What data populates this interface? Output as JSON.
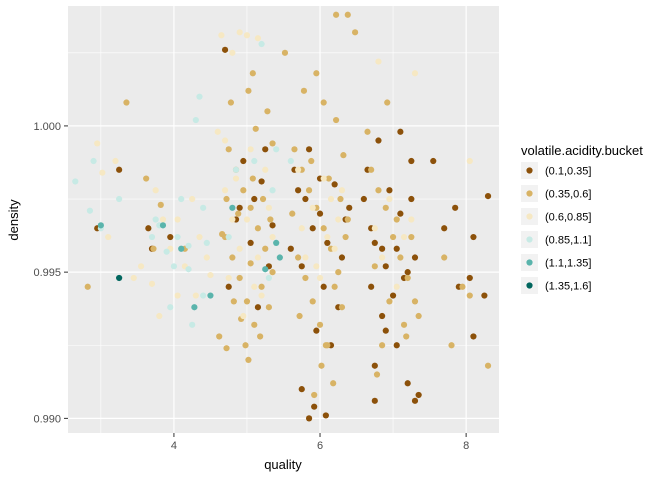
{
  "chart_data": {
    "type": "scatter",
    "xlabel": "quality",
    "ylabel": "density",
    "xlim": [
      2.55,
      8.45
    ],
    "ylim": [
      0.9895,
      1.0041
    ],
    "x_ticks": [
      4,
      6,
      8
    ],
    "x_tick_labels": [
      "4",
      "6",
      "8"
    ],
    "y_ticks": [
      0.99,
      0.995,
      1.0
    ],
    "y_tick_labels": [
      "0.990",
      "0.995",
      "1.000"
    ],
    "grid": true,
    "jitter": true,
    "legend": {
      "title": "volatile.acidity.bucket",
      "placement": "right",
      "entries": [
        {
          "label": "(0.1,0.35]",
          "color": "#8c510a"
        },
        {
          "label": "(0.35,0.6]",
          "color": "#d8b365"
        },
        {
          "label": "(0.6,0.85]",
          "color": "#f6e8c3"
        },
        {
          "label": "(0.85,1.1]",
          "color": "#c7eae5"
        },
        {
          "label": "(1.1,1.35]",
          "color": "#5ab4ac"
        },
        {
          "label": "(1.35,1.6]",
          "color": "#01665e"
        }
      ]
    },
    "series": [
      {
        "name": "(0.1,0.35]",
        "color": "#8c510a",
        "points": [
          [
            4.7,
            1.0026
          ],
          [
            4.95,
            0.9988
          ],
          [
            5.1,
            0.9975
          ],
          [
            5.2,
            0.9981
          ],
          [
            4.85,
            0.9968
          ],
          [
            5.05,
            0.996
          ],
          [
            5.3,
            0.9952
          ],
          [
            4.75,
            0.9945
          ],
          [
            5.25,
            0.9992
          ],
          [
            5.15,
            0.9938
          ],
          [
            4.9,
            0.9972
          ],
          [
            5.35,
            0.9966
          ],
          [
            5.65,
            0.9985
          ],
          [
            5.8,
            0.9975
          ],
          [
            6.0,
            0.997
          ],
          [
            6.2,
            0.998
          ],
          [
            5.9,
            0.9965
          ],
          [
            6.1,
            0.996
          ],
          [
            6.3,
            0.9955
          ],
          [
            5.75,
            0.9952
          ],
          [
            6.05,
            0.9945
          ],
          [
            6.25,
            0.9938
          ],
          [
            5.95,
            0.993
          ],
          [
            6.15,
            0.9925
          ],
          [
            5.7,
            0.9978
          ],
          [
            6.35,
            0.9968
          ],
          [
            5.85,
            0.9992
          ],
          [
            6.4,
            0.9972
          ],
          [
            6.0,
            0.9982
          ],
          [
            5.6,
            0.9958
          ],
          [
            6.65,
            0.9985
          ],
          [
            6.8,
            0.9995
          ],
          [
            6.95,
            0.9978
          ],
          [
            7.1,
            0.997
          ],
          [
            7.25,
            0.9975
          ],
          [
            6.75,
            0.996
          ],
          [
            6.9,
            0.9952
          ],
          [
            7.05,
            0.9958
          ],
          [
            7.2,
            0.995
          ],
          [
            6.7,
            0.9945
          ],
          [
            7.0,
            0.9942
          ],
          [
            7.15,
            0.9948
          ],
          [
            6.85,
            0.9935
          ],
          [
            7.3,
            0.9955
          ],
          [
            6.9,
            0.993
          ],
          [
            7.05,
            0.9925
          ],
          [
            6.75,
            0.9918
          ],
          [
            7.2,
            0.9912
          ],
          [
            7.3,
            0.9906
          ],
          [
            6.7,
            0.9965
          ],
          [
            7.1,
            0.9998
          ],
          [
            7.25,
            0.9988
          ],
          [
            6.6,
            0.9975
          ],
          [
            6.85,
            0.9958
          ],
          [
            5.75,
            0.991
          ],
          [
            5.92,
            0.9904
          ],
          [
            6.08,
            0.9901
          ],
          [
            5.85,
            0.99
          ],
          [
            6.75,
            0.9906
          ],
          [
            7.35,
            0.9908
          ],
          [
            7.55,
            0.9988
          ],
          [
            7.7,
            0.9965
          ],
          [
            7.85,
            0.9972
          ],
          [
            7.9,
            0.9945
          ],
          [
            8.05,
            0.9948
          ],
          [
            8.1,
            0.9962
          ],
          [
            8.3,
            0.9976
          ],
          [
            8.1,
            0.9928
          ],
          [
            8.25,
            0.9942
          ],
          [
            3.7,
            0.9958
          ],
          [
            3.65,
            0.9965
          ],
          [
            3.95,
            0.9962
          ],
          [
            3.25,
            0.9985
          ],
          [
            2.95,
            0.9965
          ]
        ]
      },
      {
        "name": "(0.35,0.6]",
        "color": "#d8b365",
        "points": [
          [
            4.75,
            0.9992
          ],
          [
            4.85,
            0.9985
          ],
          [
            4.95,
            0.9978
          ],
          [
            5.05,
            0.9972
          ],
          [
            5.15,
            0.9965
          ],
          [
            5.25,
            0.9958
          ],
          [
            5.35,
            0.995
          ],
          [
            4.7,
            0.9962
          ],
          [
            4.8,
            0.9955
          ],
          [
            4.9,
            0.9948
          ],
          [
            5.0,
            0.994
          ],
          [
            5.1,
            0.9932
          ],
          [
            5.2,
            0.9945
          ],
          [
            5.3,
            0.9938
          ],
          [
            4.72,
            0.9975
          ],
          [
            4.88,
            0.997
          ],
          [
            5.08,
            0.9982
          ],
          [
            5.22,
            0.9975
          ],
          [
            5.32,
            0.9968
          ],
          [
            4.82,
            0.994
          ],
          [
            5.18,
            0.9928
          ],
          [
            4.98,
            0.9925
          ],
          [
            5.12,
            0.9999
          ],
          [
            4.78,
            1.0008
          ],
          [
            5.28,
            1.0005
          ],
          [
            5.02,
            1.0012
          ],
          [
            4.92,
            0.9934
          ],
          [
            5.35,
            0.9994
          ],
          [
            4.66,
            0.9963
          ],
          [
            5.05,
            0.9953
          ],
          [
            5.65,
            0.9992
          ],
          [
            5.75,
            0.9985
          ],
          [
            5.85,
            0.9978
          ],
          [
            5.95,
            0.9972
          ],
          [
            6.05,
            0.9965
          ],
          [
            6.15,
            0.9958
          ],
          [
            6.25,
            0.995
          ],
          [
            6.35,
            0.9962
          ],
          [
            5.7,
            0.9955
          ],
          [
            5.8,
            0.9948
          ],
          [
            5.9,
            0.994
          ],
          [
            6.0,
            0.9932
          ],
          [
            6.1,
            0.9925
          ],
          [
            6.2,
            0.9945
          ],
          [
            6.3,
            0.9938
          ],
          [
            5.62,
            0.997
          ],
          [
            5.88,
            0.9988
          ],
          [
            6.12,
            0.9982
          ],
          [
            6.28,
            0.9975
          ],
          [
            6.38,
            0.9968
          ],
          [
            5.72,
            0.9935
          ],
          [
            6.02,
            0.9918
          ],
          [
            6.18,
            0.9912
          ],
          [
            5.92,
            0.9908
          ],
          [
            6.08,
            0.9925
          ],
          [
            5.95,
            1.0018
          ],
          [
            6.05,
            1.0008
          ],
          [
            6.22,
            1.0002
          ],
          [
            5.78,
            1.0012
          ],
          [
            6.32,
            0.999
          ],
          [
            6.7,
            0.9985
          ],
          [
            6.8,
            0.9978
          ],
          [
            6.9,
            0.9972
          ],
          [
            7.0,
            0.9962
          ],
          [
            7.1,
            0.9955
          ],
          [
            7.2,
            0.9948
          ],
          [
            7.3,
            0.994
          ],
          [
            6.75,
            0.9952
          ],
          [
            6.95,
            0.994
          ],
          [
            7.15,
            0.9932
          ],
          [
            6.85,
            0.9925
          ],
          [
            7.05,
            0.9968
          ],
          [
            7.25,
            0.9962
          ],
          [
            6.65,
            0.9998
          ],
          [
            7.35,
            0.9935
          ],
          [
            6.92,
            1.0008
          ],
          [
            7.18,
            0.9928
          ],
          [
            6.78,
            0.9915
          ],
          [
            7.8,
            0.9925
          ],
          [
            7.95,
            0.9945
          ],
          [
            8.05,
            0.9942
          ],
          [
            7.7,
            0.9955
          ],
          [
            8.3,
            0.9918
          ],
          [
            6.48,
            1.0032
          ],
          [
            6.22,
            1.0038
          ],
          [
            6.38,
            1.0038
          ],
          [
            5.52,
            1.0025
          ],
          [
            5.08,
            1.0018
          ],
          [
            4.62,
            0.9928
          ],
          [
            4.72,
            0.9924
          ],
          [
            5.02,
            0.992
          ],
          [
            4.15,
            0.9958
          ],
          [
            3.82,
            0.9973
          ],
          [
            3.62,
            0.9982
          ],
          [
            3.35,
            1.0008
          ],
          [
            2.82,
            0.9945
          ],
          [
            3.72,
            0.9958
          ]
        ]
      },
      {
        "name": "(0.6,0.85]",
        "color": "#f6e8c3",
        "points": [
          [
            4.65,
            1.0031
          ],
          [
            4.9,
            1.0032
          ],
          [
            5.0,
            1.0031
          ],
          [
            5.15,
            1.003
          ],
          [
            4.8,
            1.0025
          ],
          [
            4.7,
            0.9995
          ],
          [
            4.85,
            0.9982
          ],
          [
            5.0,
            0.9968
          ],
          [
            5.15,
            0.9955
          ],
          [
            5.3,
            0.9972
          ],
          [
            4.75,
            0.9948
          ],
          [
            4.95,
            0.9935
          ],
          [
            5.2,
            0.9942
          ],
          [
            4.7,
            0.9978
          ],
          [
            5.05,
            0.9992
          ],
          [
            5.25,
            0.9985
          ],
          [
            4.9,
            0.9958
          ],
          [
            5.1,
            0.9945
          ],
          [
            5.35,
            0.9962
          ],
          [
            4.8,
            0.9968
          ],
          [
            5.7,
            0.9985
          ],
          [
            5.9,
            0.9972
          ],
          [
            6.1,
            0.9962
          ],
          [
            6.3,
            0.9978
          ],
          [
            5.8,
            0.9955
          ],
          [
            6.0,
            0.9948
          ],
          [
            6.2,
            0.9958
          ],
          [
            5.75,
            0.9965
          ],
          [
            6.05,
            0.9982
          ],
          [
            6.25,
            0.9968
          ],
          [
            5.95,
            0.9952
          ],
          [
            6.15,
            0.9975
          ],
          [
            6.75,
            0.9965
          ],
          [
            6.95,
            0.9975
          ],
          [
            7.15,
            0.9962
          ],
          [
            6.85,
            0.9955
          ],
          [
            7.05,
            0.9945
          ],
          [
            7.25,
            0.9968
          ],
          [
            6.8,
            1.0022
          ],
          [
            7.3,
            1.0018
          ],
          [
            4.05,
            0.9968
          ],
          [
            4.25,
            0.9975
          ],
          [
            3.95,
            0.9958
          ],
          [
            4.15,
            0.9952
          ],
          [
            3.75,
            0.9978
          ],
          [
            4.35,
            0.9962
          ],
          [
            3.85,
            0.9968
          ],
          [
            4.45,
            0.9955
          ],
          [
            4.3,
            0.9942
          ],
          [
            4.05,
            0.9942
          ],
          [
            3.7,
            0.9946
          ],
          [
            4.5,
            0.9949
          ],
          [
            3.55,
            0.9952
          ],
          [
            3.1,
            0.9962
          ],
          [
            2.95,
            0.9994
          ],
          [
            3.02,
            0.9984
          ],
          [
            3.2,
            0.9988
          ],
          [
            3.45,
            0.9948
          ],
          [
            4.6,
            0.9998
          ],
          [
            8.05,
            0.9988
          ],
          [
            3.8,
            0.9935
          ]
        ]
      },
      {
        "name": "(0.85,1.1]",
        "color": "#c7eae5",
        "points": [
          [
            2.65,
            0.9981
          ],
          [
            2.85,
            0.9971
          ],
          [
            2.9,
            0.9988
          ],
          [
            3.0,
            0.9965
          ],
          [
            3.25,
            0.9975
          ],
          [
            3.7,
            0.9962
          ],
          [
            3.75,
            0.9968
          ],
          [
            3.9,
            0.9957
          ],
          [
            4.0,
            0.9952
          ],
          [
            4.05,
            0.9962
          ],
          [
            4.1,
            0.9975
          ],
          [
            4.2,
            0.9959
          ],
          [
            4.2,
            0.9951
          ],
          [
            4.3,
            1.0002
          ],
          [
            4.35,
            1.001
          ],
          [
            4.4,
            0.9972
          ],
          [
            4.45,
            0.996
          ],
          [
            3.8,
            0.9966
          ],
          [
            3.95,
            0.9938
          ],
          [
            4.25,
            0.9932
          ],
          [
            4.4,
            0.9942
          ],
          [
            5.2,
            1.0028
          ],
          [
            5.35,
            0.9978
          ],
          [
            5.4,
            0.9992
          ],
          [
            5.6,
            0.9988
          ],
          [
            4.85,
            0.9985
          ],
          [
            4.75,
            0.9962
          ],
          [
            5.1,
            0.9988
          ],
          [
            5.3,
            0.9948
          ]
        ]
      },
      {
        "name": "(1.1,1.35]",
        "color": "#5ab4ac",
        "points": [
          [
            3.0,
            0.9966
          ],
          [
            3.85,
            0.9966
          ],
          [
            4.1,
            0.9958
          ],
          [
            4.28,
            0.9938
          ],
          [
            4.5,
            0.9942
          ],
          [
            5.25,
            0.9951
          ],
          [
            5.4,
            0.996
          ],
          [
            5.45,
            0.9955
          ],
          [
            4.8,
            0.9972
          ]
        ]
      },
      {
        "name": "(1.35,1.6]",
        "color": "#01665e",
        "points": [
          [
            3.25,
            0.9948
          ]
        ]
      }
    ]
  }
}
